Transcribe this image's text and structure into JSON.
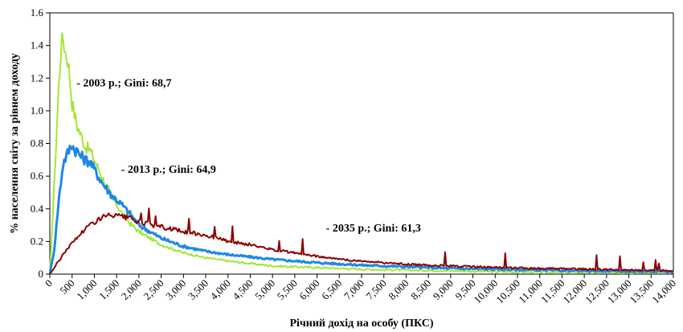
{
  "chart_data": {
    "type": "line",
    "xlabel": "Річний дохід на особу (ПКС)",
    "ylabel": "% населення світу за рівнем доходу",
    "xlim": [
      0,
      14000
    ],
    "ylim": [
      0,
      1.6
    ],
    "x_ticks": [
      0,
      500,
      1000,
      1500,
      2000,
      2500,
      3000,
      3500,
      4000,
      4500,
      5000,
      5500,
      6000,
      6500,
      7000,
      7500,
      8000,
      8500,
      9000,
      9500,
      10000,
      10500,
      11000,
      11500,
      12000,
      12500,
      13000,
      13500,
      14000
    ],
    "x_tick_labels": [
      "0",
      "500",
      "1,000",
      "1,500",
      "2,000",
      "2,500",
      "3,000",
      "3,500",
      "4,000",
      "4,500",
      "5,000",
      "5,500",
      "6,000",
      "6,500",
      "7,000",
      "7,500",
      "8,000",
      "8,500",
      "9,000",
      "9,500",
      "10,000",
      "10,500",
      "11,000",
      "11,500",
      "12,000",
      "12,500",
      "13,000",
      "13,500",
      "14,000"
    ],
    "y_ticks": [
      0,
      0.2,
      0.4,
      0.6,
      0.8,
      1.0,
      1.2,
      1.4,
      1.6
    ],
    "y_tick_labels": [
      "0",
      "0.2",
      "0.4",
      "0.6",
      "0.8",
      "1.0",
      "1.2",
      "1.4",
      "1.6"
    ],
    "grid": false,
    "legend": "none",
    "series": [
      {
        "color": "#a3e635",
        "x": [
          0,
          100,
          200,
          250,
          300,
          350,
          400,
          450,
          500,
          600,
          700,
          800,
          900,
          1000,
          1200,
          1400,
          1600,
          1800,
          2000,
          2500,
          3000,
          3500,
          4000,
          5000,
          6000,
          7000,
          8000,
          9000,
          10000,
          11000,
          12000,
          13000,
          14000
        ],
        "y": [
          0.0,
          0.55,
          1.15,
          1.38,
          1.45,
          1.36,
          1.32,
          1.2,
          1.05,
          0.92,
          0.85,
          0.78,
          0.76,
          0.7,
          0.58,
          0.47,
          0.38,
          0.31,
          0.26,
          0.18,
          0.13,
          0.1,
          0.08,
          0.05,
          0.04,
          0.03,
          0.025,
          0.02,
          0.015,
          0.012,
          0.01,
          0.01,
          0.01
        ]
      },
      {
        "color": "#1e88e5",
        "x": [
          0,
          100,
          200,
          300,
          400,
          500,
          550,
          600,
          700,
          800,
          900,
          1000,
          1200,
          1400,
          1600,
          1800,
          2000,
          2500,
          3000,
          3500,
          4000,
          5000,
          6000,
          7000,
          8000,
          9000,
          10000,
          11000,
          12000,
          13000,
          14000
        ],
        "y": [
          0.0,
          0.15,
          0.45,
          0.68,
          0.74,
          0.8,
          0.76,
          0.76,
          0.72,
          0.7,
          0.69,
          0.64,
          0.55,
          0.48,
          0.43,
          0.37,
          0.3,
          0.22,
          0.17,
          0.14,
          0.12,
          0.09,
          0.07,
          0.055,
          0.045,
          0.035,
          0.03,
          0.025,
          0.02,
          0.018,
          0.015
        ]
      },
      {
        "color": "#8b0000",
        "x": [
          0,
          200,
          400,
          600,
          800,
          1000,
          1200,
          1400,
          1600,
          1800,
          2000,
          2500,
          3000,
          3500,
          4000,
          4500,
          5000,
          5500,
          6000,
          6500,
          7000,
          7500,
          8000,
          9000,
          10000,
          11000,
          12000,
          13000,
          14000
        ],
        "y": [
          0.0,
          0.08,
          0.16,
          0.22,
          0.28,
          0.32,
          0.35,
          0.36,
          0.35,
          0.34,
          0.32,
          0.29,
          0.26,
          0.24,
          0.2,
          0.18,
          0.15,
          0.13,
          0.11,
          0.09,
          0.08,
          0.07,
          0.06,
          0.05,
          0.04,
          0.035,
          0.03,
          0.025,
          0.02
        ]
      }
    ],
    "annotations": [
      {
        "text": "- 2003 р.; Gini: 68,7",
        "x": 600,
        "y": 1.15
      },
      {
        "text": "- 2013 р.; Gini: 64,9",
        "x": 1600,
        "y": 0.62
      },
      {
        "text": "- 2035 р.; Gini: 61,3",
        "x": 6200,
        "y": 0.26
      }
    ]
  }
}
